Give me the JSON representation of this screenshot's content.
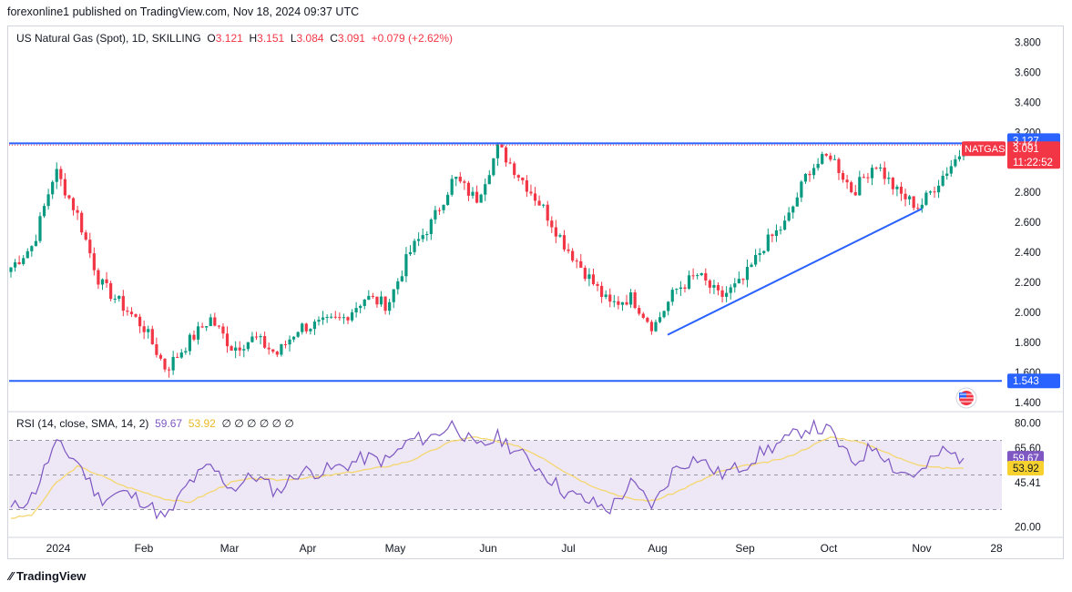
{
  "header": {
    "published": "forexonline1 published on TradingView.com, Nov 18, 2024 09:37 UTC"
  },
  "legend": {
    "symbol": "US Natural Gas (Spot), 1D, SKILLING",
    "o_label": "O",
    "o": "3.121",
    "h_label": "H",
    "h": "3.151",
    "l_label": "L",
    "l": "3.084",
    "c_label": "C",
    "c": "3.091",
    "change": "+0.079 (+2.62%)"
  },
  "rsi_legend": {
    "label": "RSI (14, close, SMA, 14, 2)",
    "rsi": "59.67",
    "sma": "53.92",
    "placeholders": "∅ ∅ ∅ ∅ ∅ ∅"
  },
  "footer": {
    "brand": "TradingView"
  },
  "colors": {
    "up": "#089981",
    "down": "#f23645",
    "line": "#2962ff",
    "rsi": "#7e57c2",
    "rsi_sma": "#f5d76e",
    "rsi_band": "#ede7f6"
  },
  "chart_data": {
    "type": "candlestick",
    "price_axis": {
      "range": [
        1.35,
        3.9
      ],
      "ticks": [
        "3.800",
        "3.600",
        "3.400",
        "3.200",
        "2.800",
        "2.600",
        "2.400",
        "2.200",
        "2.000",
        "1.800",
        "1.600",
        "1.400"
      ]
    },
    "price_labels": [
      {
        "text": "3.127",
        "value": 3.127
      },
      {
        "text": "NATGAS",
        "value": 3.091
      },
      {
        "text": "3.091",
        "value": 3.091
      },
      {
        "text": "11:22:52",
        "value": 3.0
      },
      {
        "text": "1.543",
        "value": 1.543
      }
    ],
    "x_labels": [
      "2024",
      "Feb",
      "Mar",
      "Apr",
      "May",
      "Jun",
      "Jul",
      "Aug",
      "Sep",
      "Oct",
      "Nov",
      "28"
    ],
    "horizontal_lines": [
      {
        "name": "resistance",
        "value": 3.127
      },
      {
        "name": "support",
        "value": 1.543
      }
    ],
    "trendline": {
      "from": {
        "x": "2024-08-01",
        "y": 1.85
      },
      "to": {
        "x": "2024-10-31",
        "y": 2.69
      }
    },
    "closes_weekly": [
      2.3,
      2.45,
      2.95,
      2.65,
      2.2,
      2.05,
      1.9,
      1.62,
      1.8,
      1.96,
      1.76,
      1.83,
      1.72,
      1.9,
      1.92,
      1.96,
      2.1,
      2.05,
      2.4,
      2.6,
      2.9,
      2.75,
      3.1,
      2.9,
      2.7,
      2.45,
      2.25,
      2.05,
      2.1,
      1.9,
      2.15,
      2.25,
      2.1,
      2.2,
      2.45,
      2.6,
      2.95,
      3.05,
      2.8,
      3.0,
      2.8,
      2.7,
      2.9,
      3.091
    ],
    "rsi": {
      "axis_ticks": [
        "80.00",
        "65.60",
        "45.41",
        "20.00"
      ],
      "band": [
        30,
        70
      ],
      "range": [
        15,
        85
      ],
      "current": 59.67,
      "sma_current": 53.92,
      "values_weekly": [
        30,
        38,
        68,
        58,
        36,
        40,
        35,
        24,
        45,
        55,
        42,
        50,
        40,
        52,
        52,
        55,
        60,
        58,
        70,
        72,
        80,
        65,
        72,
        62,
        52,
        40,
        35,
        30,
        45,
        32,
        55,
        60,
        50,
        55,
        64,
        70,
        78,
        75,
        56,
        68,
        52,
        50,
        64,
        59.67
      ],
      "sma_weekly": [
        25,
        27,
        45,
        55,
        50,
        44,
        40,
        36,
        34,
        40,
        46,
        48,
        47,
        48,
        49,
        51,
        53,
        55,
        58,
        64,
        70,
        72,
        69,
        66,
        60,
        52,
        45,
        40,
        36,
        35,
        40,
        46,
        52,
        55,
        57,
        60,
        66,
        72,
        70,
        66,
        60,
        56,
        54,
        53.92
      ]
    }
  }
}
